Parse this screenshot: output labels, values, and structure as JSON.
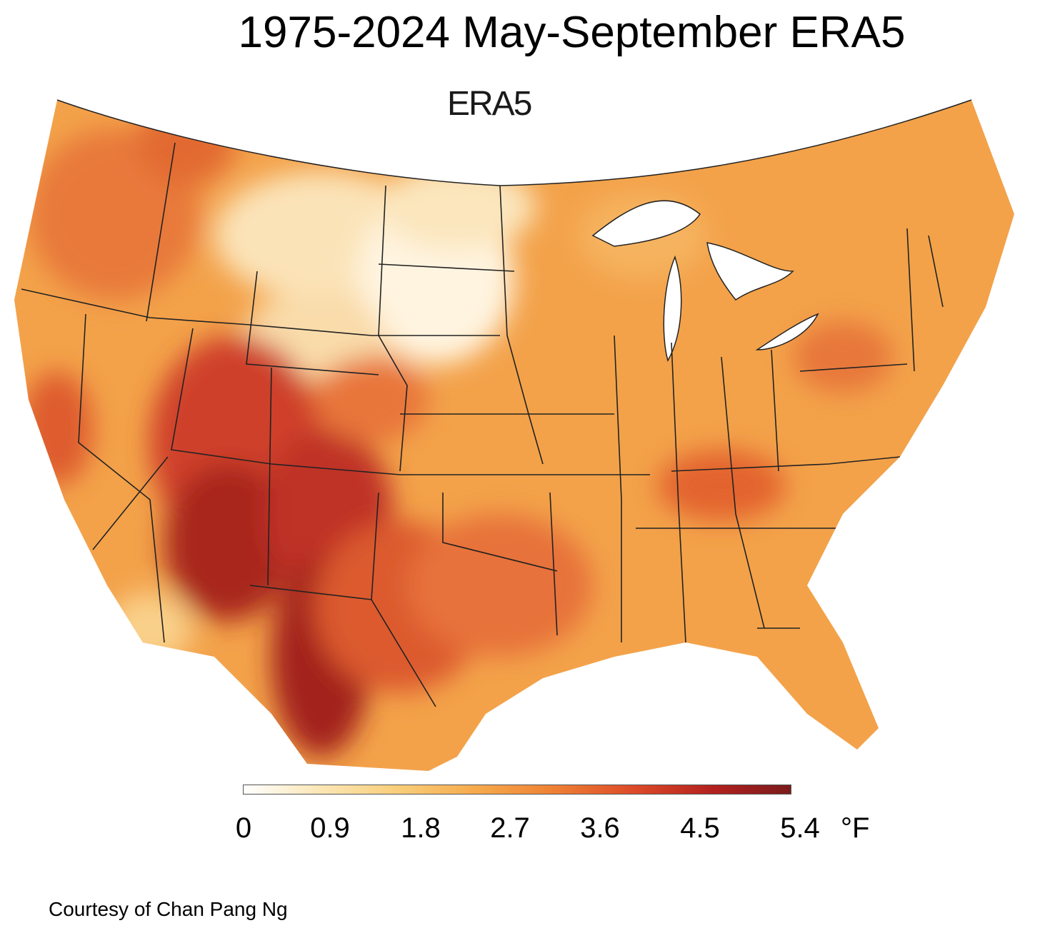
{
  "title": "1975-2024 May-September ERA5",
  "map_label": "ERA5",
  "colorbar": {
    "ticks": [
      "0",
      "0.9",
      "1.8",
      "2.7",
      "3.6",
      "4.5",
      "5.4"
    ],
    "unit": "°F",
    "colors": [
      "#ffffff",
      "#fbe6b4",
      "#f9cd78",
      "#f6a94b",
      "#ee7f34",
      "#dc4a28",
      "#b3211f",
      "#7a1b1c"
    ]
  },
  "credit": "Courtesy of Chan Pang Ng"
}
